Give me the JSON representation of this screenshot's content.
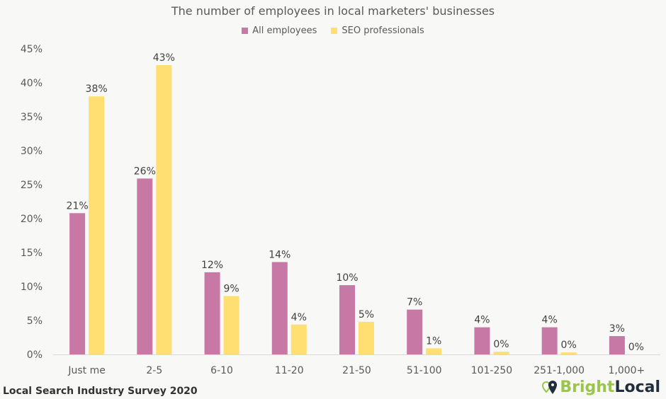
{
  "chart_data": {
    "type": "bar",
    "title": "The number of employees in local marketers' businesses",
    "categories": [
      "Just me",
      "2-5",
      "6-10",
      "11-20",
      "21-50",
      "51-100",
      "101-250",
      "251-1,000",
      "1,000+"
    ],
    "series": [
      {
        "name": "All employees",
        "color": "#c878a4",
        "values": [
          20.8,
          25.9,
          12.1,
          13.6,
          10.2,
          6.6,
          4.0,
          4.0,
          2.7
        ]
      },
      {
        "name": "SEO professionals",
        "color": "#ffdf72",
        "values": [
          38.0,
          42.6,
          8.6,
          4.4,
          4.8,
          0.9,
          0.4,
          0.3,
          0.0
        ]
      }
    ],
    "data_labels": [
      [
        "21%",
        "26%",
        "12%",
        "14%",
        "10%",
        "7%",
        "4%",
        "4%",
        "3%"
      ],
      [
        "38%",
        "43%",
        "9%",
        "4%",
        "5%",
        "1%",
        "0%",
        "0%",
        "0%"
      ]
    ],
    "yticks": [
      "0%",
      "5%",
      "10%",
      "15%",
      "20%",
      "25%",
      "30%",
      "35%",
      "40%",
      "45%"
    ],
    "ylim": [
      0,
      45
    ],
    "xlabel": "",
    "ylabel": "",
    "grid": false,
    "legend": "top"
  },
  "footer": "Local Search Industry Survey 2020",
  "logo": {
    "part1": "Bright",
    "part2": "Local",
    "color1": "#9bc54a",
    "color2": "#1f2d3d"
  }
}
